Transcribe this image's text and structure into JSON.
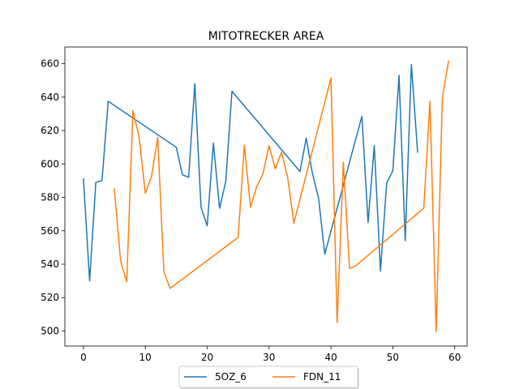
{
  "chart_data": {
    "type": "line",
    "title": "MITOTRECKER AREA",
    "xlabel": "",
    "ylabel": "",
    "xlim": [
      -3,
      62
    ],
    "ylim": [
      491,
      670
    ],
    "xticks": [
      0,
      10,
      20,
      30,
      40,
      50,
      60
    ],
    "yticks": [
      500,
      520,
      540,
      560,
      580,
      600,
      620,
      640,
      660
    ],
    "grid": false,
    "legend_position": "bottom-center",
    "series": [
      {
        "name": "5OZ_6",
        "color": "#1f77b4",
        "x": [
          0,
          1,
          2,
          3,
          4,
          15,
          16,
          17,
          18,
          19,
          20,
          21,
          22,
          23,
          24,
          35,
          36,
          37,
          38,
          39,
          45,
          46,
          47,
          48,
          49,
          50,
          51,
          52,
          53,
          54
        ],
        "y": [
          591,
          530,
          589,
          590,
          637.5,
          610,
          593.5,
          592,
          648,
          574,
          563,
          612.5,
          573.5,
          589.5,
          643.5,
          595.5,
          615.5,
          594.5,
          579.5,
          546,
          628.5,
          565,
          611,
          536,
          588.5,
          596,
          653,
          554,
          659.5,
          607
        ]
      },
      {
        "name": "FDN_11",
        "color": "#ff7f0e",
        "x": [
          5,
          6,
          7,
          8,
          9,
          10,
          11,
          12,
          13,
          14,
          25,
          26,
          27,
          28,
          29,
          30,
          31,
          32,
          33,
          34,
          40,
          41,
          42,
          43,
          44,
          55,
          56,
          57,
          58,
          59
        ],
        "y": [
          585,
          542,
          529.5,
          632,
          616,
          582.5,
          592.5,
          616,
          535.5,
          525.5,
          556,
          611,
          574,
          586.5,
          594,
          611,
          597,
          607,
          592,
          564.5,
          651.5,
          505,
          601,
          537.5,
          539,
          573.5,
          637.5,
          499.5,
          639.5,
          661.5
        ]
      }
    ]
  }
}
